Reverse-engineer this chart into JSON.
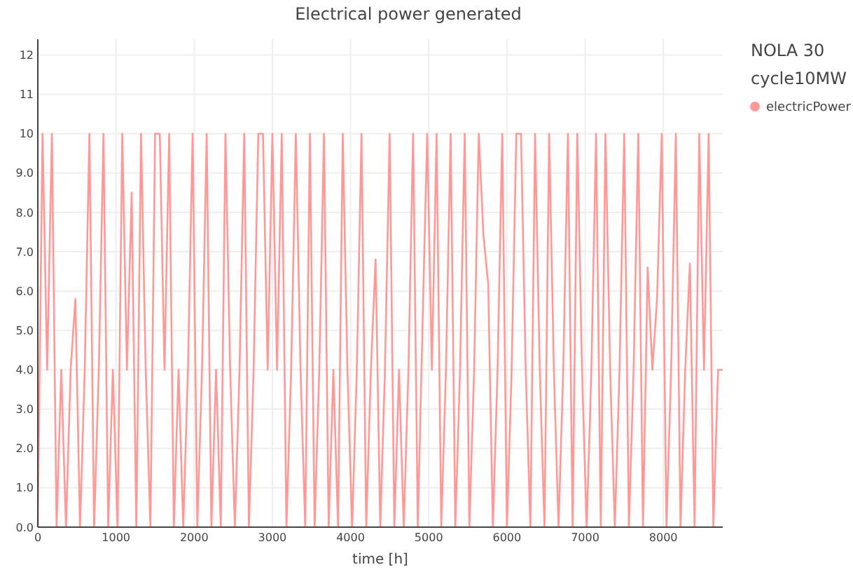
{
  "chart_data": {
    "type": "line",
    "title": "Electrical power generated",
    "xlabel": "time [h]",
    "legend_title": "NOLA 30 cycle10MW",
    "legend": "top right",
    "grid": true,
    "marker": "none",
    "line_style": "solid",
    "xlim": [
      0,
      8760
    ],
    "xticks": [
      0,
      1000,
      2000,
      3000,
      4000,
      5000,
      6000,
      7000,
      8000
    ],
    "ylim": [
      0,
      12.4
    ],
    "yticks": [
      {
        "value": 0,
        "label": "0.0"
      },
      {
        "value": 1,
        "label": "1.0"
      },
      {
        "value": 2,
        "label": "2.0"
      },
      {
        "value": 3,
        "label": "3.0"
      },
      {
        "value": 4,
        "label": "4.0"
      },
      {
        "value": 5,
        "label": "5.0"
      },
      {
        "value": 6,
        "label": "6.0"
      },
      {
        "value": 7,
        "label": "7.0"
      },
      {
        "value": 8,
        "label": "8.0"
      },
      {
        "value": 9,
        "label": "9.0"
      },
      10,
      11,
      12
    ],
    "x": [
      0,
      60,
      120,
      180,
      240,
      300,
      360,
      420,
      480,
      540,
      600,
      660,
      720,
      780,
      840,
      900,
      960,
      1020,
      1080,
      1140,
      1200,
      1260,
      1320,
      1380,
      1440,
      1500,
      1560,
      1620,
      1680,
      1740,
      1800,
      1860,
      1920,
      1980,
      2040,
      2100,
      2160,
      2220,
      2280,
      2340,
      2400,
      2460,
      2520,
      2580,
      2640,
      2700,
      2760,
      2820,
      2880,
      2940,
      3000,
      3060,
      3120,
      3180,
      3240,
      3300,
      3360,
      3420,
      3480,
      3540,
      3600,
      3660,
      3720,
      3780,
      3840,
      3900,
      3960,
      4020,
      4080,
      4140,
      4200,
      4260,
      4320,
      4380,
      4440,
      4500,
      4560,
      4620,
      4680,
      4740,
      4800,
      4860,
      4920,
      4980,
      5040,
      5100,
      5160,
      5220,
      5280,
      5340,
      5400,
      5460,
      5520,
      5580,
      5640,
      5700,
      5760,
      5820,
      5880,
      5940,
      6000,
      6060,
      6120,
      6180,
      6240,
      6300,
      6360,
      6420,
      6480,
      6540,
      6600,
      6660,
      6720,
      6780,
      6840,
      6900,
      6960,
      7020,
      7080,
      7140,
      7200,
      7260,
      7320,
      7380,
      7440,
      7500,
      7560,
      7620,
      7680,
      7740,
      7800,
      7860,
      7920,
      7980,
      8040,
      8100,
      8160,
      8220,
      8280,
      8340,
      8400,
      8460,
      8520,
      8580,
      8640,
      8700,
      8760
    ],
    "series": [
      {
        "name": "electricPower",
        "color": "#ff9896",
        "values": [
          0,
          10,
          4,
          10,
          0,
          4,
          0,
          4,
          5.8,
          0,
          4,
          10,
          0,
          4,
          10,
          0,
          4,
          0,
          10,
          4,
          8.5,
          0,
          10,
          4,
          0,
          10,
          10,
          4,
          10,
          0,
          4,
          0,
          4,
          10,
          0,
          4,
          10,
          0,
          4,
          0,
          10,
          4,
          0,
          4,
          10,
          0,
          4,
          10,
          10,
          4,
          10,
          4,
          10,
          0,
          4,
          10,
          4,
          0,
          10,
          0,
          4,
          10,
          0,
          4,
          0,
          10,
          4,
          0,
          4,
          10,
          0,
          4,
          6.8,
          0,
          4,
          10,
          0,
          4,
          0,
          4,
          10,
          0,
          5.1,
          10,
          4,
          10,
          0,
          4,
          10,
          0,
          4,
          10,
          0,
          4,
          10,
          7.4,
          6.2,
          0,
          4,
          10,
          0,
          4,
          10,
          10,
          4,
          0,
          10,
          4,
          0,
          10,
          4,
          0,
          4,
          10,
          0,
          10,
          4,
          0,
          4,
          10,
          0,
          10,
          4,
          0,
          4,
          10,
          0,
          4,
          10,
          0,
          6.6,
          4,
          5.8,
          10,
          0,
          4,
          10,
          0,
          4,
          6.7,
          0,
          10,
          4,
          10,
          0,
          4,
          4
        ]
      }
    ]
  }
}
